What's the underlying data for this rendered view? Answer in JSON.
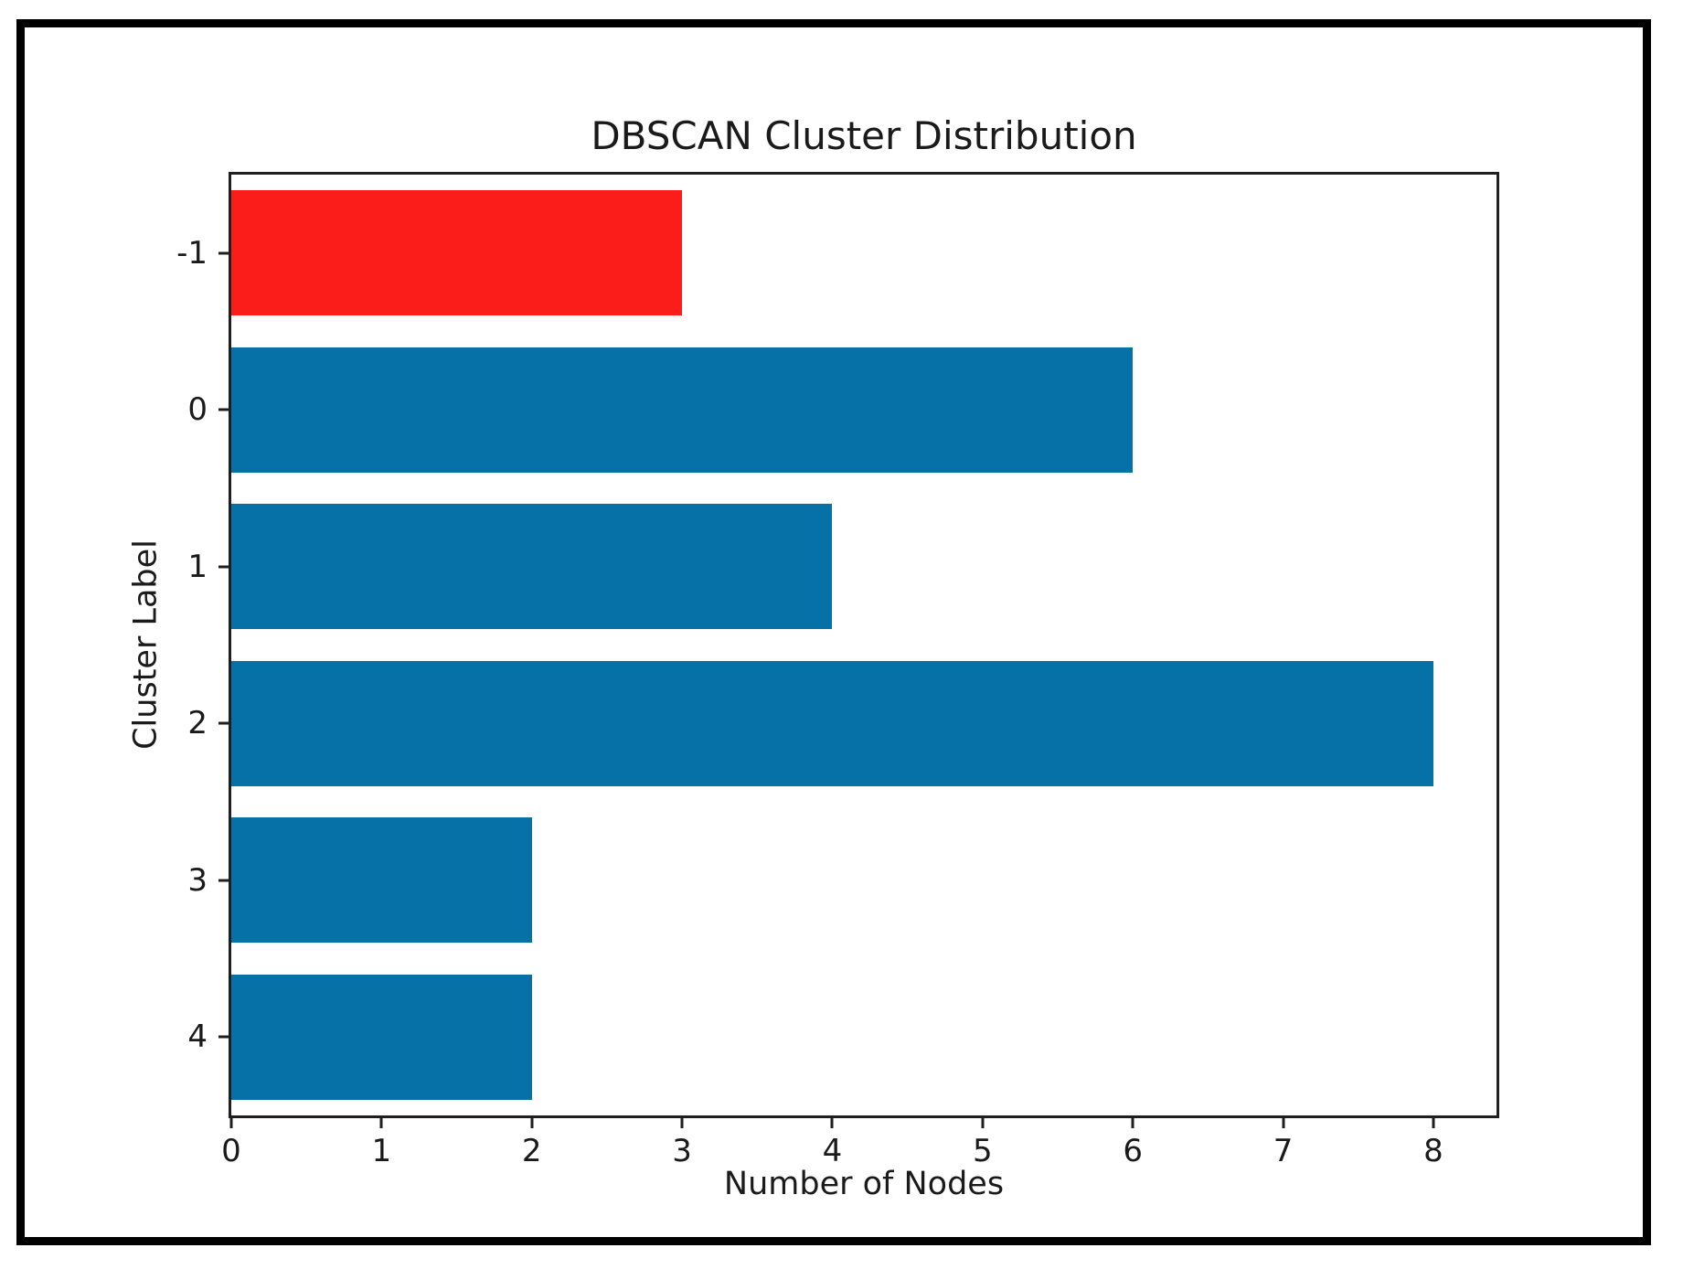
{
  "chart_data": {
    "type": "bar",
    "orientation": "horizontal",
    "title": "DBSCAN Cluster Distribution",
    "xlabel": "Number of Nodes",
    "ylabel": "Cluster Label",
    "categories": [
      "-1",
      "0",
      "1",
      "2",
      "3",
      "4"
    ],
    "values": [
      3,
      6,
      4,
      8,
      2,
      2
    ],
    "bar_colors": [
      "#fb1d1a",
      "#0571a6",
      "#0571a6",
      "#0571a6",
      "#0571a6",
      "#0571a6"
    ],
    "x_ticks": [
      0,
      1,
      2,
      3,
      4,
      5,
      6,
      7,
      8
    ],
    "xlim": [
      0,
      8.42
    ],
    "bar_height_fraction": 0.8,
    "grid": false,
    "legend": null,
    "colors": {
      "noise_bar": "#fb1d1a",
      "cluster_bar": "#0571a6",
      "axis_spine": "#1f1f1f",
      "text": "#1a1a1a",
      "outer_frame": "#000000",
      "background": "#ffffff"
    }
  }
}
